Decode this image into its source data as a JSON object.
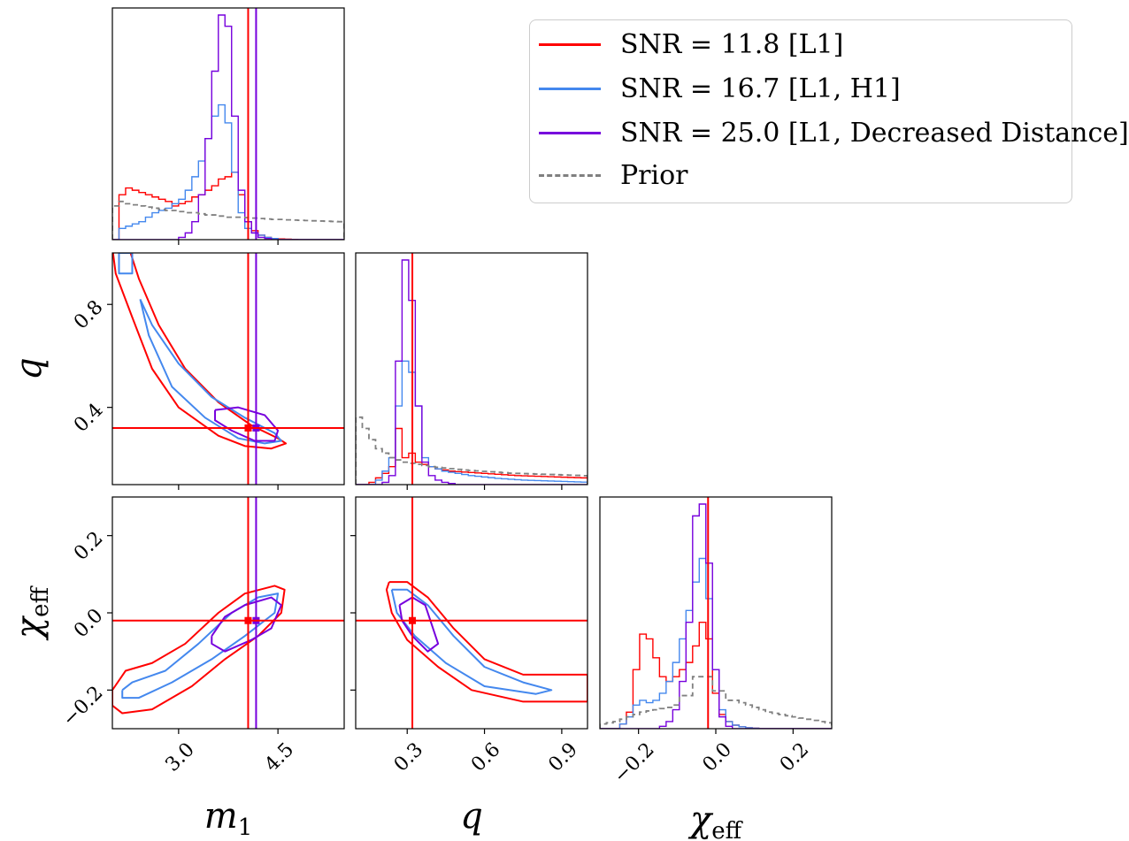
{
  "chart_data": {
    "type": "corner",
    "parameters": [
      {
        "key": "m1",
        "label": "m",
        "sub": "1",
        "range": [
          2.0,
          5.5
        ],
        "ticks": [
          3.0,
          4.5
        ],
        "tick_labels": [
          "3.0",
          "4.5"
        ]
      },
      {
        "key": "q",
        "label": "q",
        "sub": "",
        "range": [
          0.1,
          1.0
        ],
        "ticks": [
          0.3,
          0.6,
          0.9
        ],
        "tick_labels": [
          "0.3",
          "0.6",
          "0.9"
        ],
        "y_ticks": [
          0.4,
          0.8
        ],
        "y_tick_labels": [
          "0.4",
          "0.8"
        ]
      },
      {
        "key": "chi_eff",
        "label": "χ",
        "sub": "eff",
        "range": [
          -0.3,
          0.3
        ],
        "ticks": [
          -0.2,
          0.0,
          0.2
        ],
        "tick_labels": [
          "−0.2",
          "0.0",
          "0.2"
        ]
      }
    ],
    "truths": {
      "m1": 4.05,
      "m1_alt": 4.17,
      "q": 0.32,
      "chi_eff": -0.02
    },
    "series": [
      {
        "name": "SNR = 11.8 [L1]",
        "color": "#ff0000",
        "style": "solid"
      },
      {
        "name": "SNR = 16.7 [L1, H1]",
        "color": "#4488ee",
        "style": "solid"
      },
      {
        "name": "SNR = 25.0 [L1, Decreased Distance]",
        "color": "#7700dd",
        "style": "solid"
      },
      {
        "name": "Prior",
        "color": "#808080",
        "style": "dashed"
      }
    ],
    "histograms": {
      "m1": {
        "edges_range": [
          2.0,
          5.5
        ],
        "bins": 35,
        "SNR = 11.8 [L1]": [
          0,
          0.2,
          0.23,
          0.22,
          0.21,
          0.2,
          0.19,
          0.18,
          0.17,
          0.15,
          0.16,
          0.17,
          0.19,
          0.2,
          0.22,
          0.24,
          0.27,
          0.28,
          0.3,
          0.2,
          0.08,
          0.04,
          0.02,
          0.01,
          0.005,
          0.003,
          0.002,
          0.001,
          0,
          0,
          0,
          0,
          0,
          0,
          0
        ],
        "SNR = 16.7 [L1, H1]": [
          0,
          0.05,
          0.06,
          0.07,
          0.08,
          0.1,
          0.12,
          0.13,
          0.14,
          0.16,
          0.18,
          0.22,
          0.28,
          0.35,
          0.45,
          0.55,
          0.6,
          0.52,
          0.3,
          0.12,
          0.05,
          0.03,
          0.02,
          0.01,
          0.005,
          0,
          0,
          0,
          0,
          0,
          0,
          0,
          0,
          0,
          0
        ],
        "SNR = 25.0 [L1, Decreased Distance]": [
          0,
          0,
          0,
          0,
          0,
          0,
          0,
          0,
          0,
          0,
          0.01,
          0.03,
          0.08,
          0.2,
          0.45,
          0.75,
          1.0,
          0.95,
          0.55,
          0.22,
          0.08,
          0.03,
          0.01,
          0.005,
          0,
          0,
          0,
          0,
          0,
          0,
          0,
          0,
          0,
          0,
          0
        ],
        "Prior": [
          0.15,
          0.17,
          0.16,
          0.155,
          0.15,
          0.145,
          0.14,
          0.135,
          0.13,
          0.13,
          0.125,
          0.12,
          0.12,
          0.115,
          0.11,
          0.11,
          0.105,
          0.1,
          0.1,
          0.1,
          0.098,
          0.096,
          0.094,
          0.092,
          0.09,
          0.09,
          0.088,
          0.087,
          0.086,
          0.085,
          0.084,
          0.083,
          0.082,
          0.081,
          0.08
        ]
      },
      "q": {
        "edges_range": [
          0.1,
          1.0
        ],
        "bins": 35,
        "SNR = 11.8 [L1]": [
          0,
          0,
          0.01,
          0.03,
          0.05,
          0.08,
          0.25,
          0.12,
          0.14,
          0.1,
          0.09,
          0.08,
          0.07,
          0.065,
          0.06,
          0.058,
          0.056,
          0.054,
          0.052,
          0.05,
          0.048,
          0.046,
          0.044,
          0.042,
          0.04,
          0.039,
          0.038,
          0.037,
          0.036,
          0.035,
          0.034,
          0.033,
          0.032,
          0.031,
          0.03
        ],
        "SNR = 16.7 [L1, H1]": [
          0,
          0,
          0,
          0.02,
          0.06,
          0.12,
          0.35,
          0.55,
          0.5,
          0.35,
          0.12,
          0.08,
          0.07,
          0.06,
          0.055,
          0.05,
          0.045,
          0.04,
          0.037,
          0.034,
          0.031,
          0.028,
          0.026,
          0.024,
          0.022,
          0.02,
          0.019,
          0.018,
          0.017,
          0.016,
          0.015,
          0.014,
          0.013,
          0.012,
          0.011
        ],
        "SNR = 25.0 [L1, Decreased Distance]": [
          0,
          0,
          0,
          0,
          0.01,
          0.04,
          0.55,
          1.0,
          0.82,
          0.35,
          0.1,
          0.04,
          0.02,
          0.01,
          0.005,
          0,
          0,
          0,
          0,
          0,
          0,
          0,
          0,
          0,
          0,
          0,
          0,
          0,
          0,
          0,
          0,
          0,
          0,
          0,
          0
        ],
        "Prior": [
          0.3,
          0.25,
          0.2,
          0.16,
          0.14,
          0.12,
          0.11,
          0.1,
          0.095,
          0.09,
          0.085,
          0.08,
          0.077,
          0.074,
          0.071,
          0.068,
          0.065,
          0.063,
          0.061,
          0.059,
          0.057,
          0.055,
          0.053,
          0.051,
          0.05,
          0.049,
          0.048,
          0.047,
          0.046,
          0.045,
          0.044,
          0.043,
          0.042,
          0.041,
          0.04
        ]
      },
      "chi_eff": {
        "edges_range": [
          -0.3,
          0.3
        ],
        "bins": 35,
        "SNR = 11.8 [L1]": [
          0,
          0,
          0,
          0.02,
          0.07,
          0.25,
          0.4,
          0.38,
          0.3,
          0.22,
          0.2,
          0.22,
          0.25,
          0.28,
          0.35,
          0.45,
          0.38,
          0.15,
          0.06,
          0.03,
          0.015,
          0.008,
          0.004,
          0.002,
          0,
          0,
          0,
          0,
          0,
          0,
          0,
          0,
          0,
          0,
          0
        ],
        "SNR = 16.7 [L1, H1]": [
          0,
          0,
          0,
          0.02,
          0.05,
          0.1,
          0.12,
          0.11,
          0.12,
          0.15,
          0.2,
          0.28,
          0.38,
          0.5,
          0.62,
          0.72,
          0.55,
          0.25,
          0.08,
          0.03,
          0.015,
          0.008,
          0.004,
          0.002,
          0,
          0,
          0,
          0,
          0,
          0,
          0,
          0,
          0,
          0,
          0
        ],
        "SNR = 25.0 [L1, Decreased Distance]": [
          0,
          0,
          0,
          0,
          0,
          0,
          0,
          0,
          0,
          0.01,
          0.03,
          0.08,
          0.2,
          0.45,
          0.9,
          0.95,
          0.7,
          0.25,
          0.05,
          0.01,
          0,
          0,
          0,
          0,
          0,
          0,
          0,
          0,
          0,
          0,
          0,
          0,
          0,
          0,
          0
        ],
        "Prior": [
          0.02,
          0.025,
          0.03,
          0.04,
          0.05,
          0.06,
          0.07,
          0.075,
          0.08,
          0.085,
          0.09,
          0.1,
          0.14,
          0.14,
          0.22,
          0.22,
          0.22,
          0.16,
          0.16,
          0.12,
          0.12,
          0.11,
          0.1,
          0.09,
          0.08,
          0.07,
          0.065,
          0.06,
          0.055,
          0.05,
          0.045,
          0.04,
          0.035,
          0.03,
          0.025
        ]
      }
    },
    "contours": {
      "m1_q": {
        "SNR = 11.8 [L1]": [
          [
            [
              2.0,
              1.02
            ],
            [
              2.25,
              1.02
            ],
            [
              2.4,
              0.9
            ],
            [
              2.7,
              0.72
            ],
            [
              3.1,
              0.55
            ],
            [
              3.6,
              0.42
            ],
            [
              4.1,
              0.33
            ],
            [
              4.5,
              0.28
            ],
            [
              4.62,
              0.26
            ],
            [
              4.4,
              0.24
            ],
            [
              4.0,
              0.25
            ],
            [
              3.6,
              0.29
            ],
            [
              3.0,
              0.4
            ],
            [
              2.6,
              0.55
            ],
            [
              2.3,
              0.75
            ],
            [
              2.05,
              0.92
            ],
            [
              2.0,
              1.02
            ]
          ]
        ],
        "SNR = 16.7 [L1, H1]": [
          [
            [
              2.1,
              1.0
            ],
            [
              2.3,
              1.0
            ],
            [
              2.3,
              0.92
            ],
            [
              2.1,
              0.92
            ],
            [
              2.1,
              1.0
            ]
          ],
          [
            [
              2.42,
              0.82
            ],
            [
              2.6,
              0.72
            ],
            [
              3.0,
              0.57
            ],
            [
              3.5,
              0.44
            ],
            [
              4.0,
              0.36
            ],
            [
              4.45,
              0.3
            ],
            [
              4.55,
              0.27
            ],
            [
              4.3,
              0.26
            ],
            [
              3.9,
              0.28
            ],
            [
              3.4,
              0.36
            ],
            [
              2.9,
              0.48
            ],
            [
              2.55,
              0.68
            ],
            [
              2.42,
              0.82
            ]
          ]
        ],
        "SNR = 25.0 [L1, Decreased Distance]": [
          [
            [
              3.55,
              0.39
            ],
            [
              3.9,
              0.4
            ],
            [
              4.3,
              0.37
            ],
            [
              4.5,
              0.31
            ],
            [
              4.45,
              0.27
            ],
            [
              4.15,
              0.27
            ],
            [
              3.8,
              0.31
            ],
            [
              3.55,
              0.35
            ],
            [
              3.55,
              0.39
            ]
          ]
        ]
      },
      "m1_chi": {
        "SNR = 11.8 [L1]": [
          [
            [
              2.0,
              -0.2
            ],
            [
              2.2,
              -0.15
            ],
            [
              2.6,
              -0.13
            ],
            [
              3.1,
              -0.08
            ],
            [
              3.6,
              0.0
            ],
            [
              4.0,
              0.05
            ],
            [
              4.45,
              0.07
            ],
            [
              4.6,
              0.06
            ],
            [
              4.55,
              0.0
            ],
            [
              4.2,
              -0.06
            ],
            [
              3.7,
              -0.12
            ],
            [
              3.2,
              -0.19
            ],
            [
              2.6,
              -0.25
            ],
            [
              2.15,
              -0.26
            ],
            [
              2.0,
              -0.24
            ],
            [
              2.0,
              -0.2
            ]
          ]
        ],
        "SNR = 16.7 [L1, H1]": [
          [
            [
              2.15,
              -0.2
            ],
            [
              2.3,
              -0.18
            ],
            [
              2.8,
              -0.15
            ],
            [
              3.3,
              -0.08
            ],
            [
              3.8,
              0.0
            ],
            [
              4.2,
              0.04
            ],
            [
              4.5,
              0.05
            ],
            [
              4.45,
              0.0
            ],
            [
              4.0,
              -0.06
            ],
            [
              3.5,
              -0.12
            ],
            [
              2.9,
              -0.18
            ],
            [
              2.4,
              -0.22
            ],
            [
              2.15,
              -0.22
            ],
            [
              2.15,
              -0.2
            ]
          ]
        ],
        "SNR = 25.0 [L1, Decreased Distance]": [
          [
            [
              3.5,
              -0.06
            ],
            [
              3.7,
              -0.01
            ],
            [
              4.0,
              0.02
            ],
            [
              4.4,
              0.04
            ],
            [
              4.55,
              0.02
            ],
            [
              4.4,
              -0.04
            ],
            [
              4.1,
              -0.07
            ],
            [
              3.7,
              -0.1
            ],
            [
              3.5,
              -0.08
            ],
            [
              3.5,
              -0.06
            ]
          ]
        ]
      },
      "q_chi": {
        "SNR = 11.8 [L1]": [
          [
            [
              0.23,
              0.08
            ],
            [
              0.3,
              0.08
            ],
            [
              0.38,
              0.04
            ],
            [
              0.48,
              -0.04
            ],
            [
              0.6,
              -0.12
            ],
            [
              0.75,
              -0.16
            ],
            [
              1.0,
              -0.16
            ],
            [
              1.0,
              -0.23
            ],
            [
              0.75,
              -0.23
            ],
            [
              0.55,
              -0.2
            ],
            [
              0.42,
              -0.14
            ],
            [
              0.3,
              -0.07
            ],
            [
              0.24,
              0.0
            ],
            [
              0.22,
              0.06
            ],
            [
              0.23,
              0.08
            ]
          ]
        ],
        "SNR = 16.7 [L1, H1]": [
          [
            [
              0.24,
              0.06
            ],
            [
              0.3,
              0.06
            ],
            [
              0.38,
              0.02
            ],
            [
              0.48,
              -0.06
            ],
            [
              0.6,
              -0.14
            ],
            [
              0.75,
              -0.18
            ],
            [
              0.86,
              -0.2
            ],
            [
              0.8,
              -0.21
            ],
            [
              0.6,
              -0.19
            ],
            [
              0.45,
              -0.13
            ],
            [
              0.33,
              -0.06
            ],
            [
              0.26,
              0.0
            ],
            [
              0.24,
              0.06
            ]
          ]
        ],
        "SNR = 25.0 [L1, Decreased Distance]": [
          [
            [
              0.27,
              0.02
            ],
            [
              0.32,
              0.04
            ],
            [
              0.37,
              0.02
            ],
            [
              0.4,
              -0.04
            ],
            [
              0.42,
              -0.08
            ],
            [
              0.38,
              -0.1
            ],
            [
              0.32,
              -0.06
            ],
            [
              0.28,
              -0.02
            ],
            [
              0.27,
              0.02
            ]
          ]
        ]
      }
    }
  }
}
